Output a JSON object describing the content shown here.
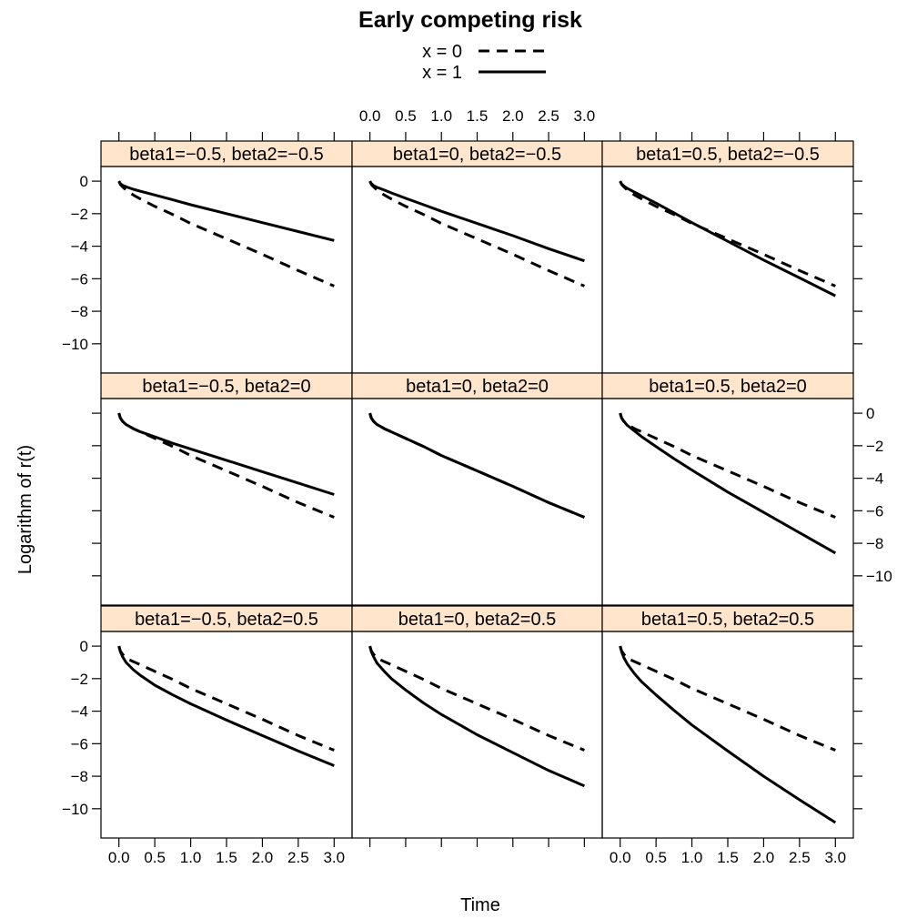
{
  "chart_data": {
    "type": "line",
    "title": "Early competing risk",
    "xlabel": "Time",
    "ylabel": "Logarithm of r(t)",
    "xlim": [
      -0.25,
      3.25
    ],
    "ylim": [
      -11.8,
      0.9
    ],
    "xticks": [
      0.0,
      0.5,
      1.0,
      1.5,
      2.0,
      2.5,
      3.0
    ],
    "xtick_labels": [
      "0.0",
      "0.5",
      "1.0",
      "1.5",
      "2.0",
      "2.5",
      "3.0"
    ],
    "yticks": [
      0,
      -2,
      -4,
      -6,
      -8,
      -10
    ],
    "ytick_labels": [
      "0",
      "−2",
      "−4",
      "−6",
      "−8",
      "−10"
    ],
    "grid": false,
    "legend": {
      "placement": "top-center",
      "entries": [
        {
          "label": "x = 0",
          "style": "dashed"
        },
        {
          "label": "x = 1",
          "style": "solid"
        }
      ]
    },
    "strip_color": "#ffe5cc",
    "x": [
      0.0,
      0.02,
      0.05,
      0.1,
      0.2,
      0.3,
      0.5,
      0.75,
      1.0,
      1.5,
      2.0,
      2.5,
      3.0
    ],
    "panels": [
      {
        "label": "beta1=−0.5, beta2=−0.5",
        "row": 1,
        "col": 1,
        "series": [
          {
            "name": "x = 0",
            "values": [
              0,
              -0.2,
              -0.35,
              -0.55,
              -0.85,
              -1.1,
              -1.55,
              -2.05,
              -2.6,
              -3.55,
              -4.5,
              -5.5,
              -6.45
            ]
          },
          {
            "name": "x = 1",
            "values": [
              0,
              -0.15,
              -0.25,
              -0.35,
              -0.5,
              -0.62,
              -0.85,
              -1.15,
              -1.45,
              -2.0,
              -2.55,
              -3.1,
              -3.65
            ]
          }
        ]
      },
      {
        "label": "beta1=0, beta2=−0.5",
        "row": 1,
        "col": 2,
        "series": [
          {
            "name": "x = 0",
            "values": [
              0,
              -0.2,
              -0.35,
              -0.55,
              -0.85,
              -1.1,
              -1.55,
              -2.05,
              -2.6,
              -3.55,
              -4.5,
              -5.5,
              -6.45
            ]
          },
          {
            "name": "x = 1",
            "values": [
              0,
              -0.15,
              -0.27,
              -0.38,
              -0.55,
              -0.72,
              -1.05,
              -1.45,
              -1.85,
              -2.6,
              -3.35,
              -4.15,
              -4.9
            ]
          }
        ]
      },
      {
        "label": "beta1=0.5, beta2=−0.5",
        "row": 1,
        "col": 3,
        "series": [
          {
            "name": "x = 0",
            "values": [
              0,
              -0.2,
              -0.35,
              -0.55,
              -0.85,
              -1.1,
              -1.55,
              -2.05,
              -2.6,
              -3.55,
              -4.5,
              -5.5,
              -6.45
            ]
          },
          {
            "name": "x = 1",
            "values": [
              0,
              -0.18,
              -0.3,
              -0.45,
              -0.68,
              -0.9,
              -1.35,
              -1.95,
              -2.55,
              -3.7,
              -4.85,
              -5.95,
              -7.05
            ]
          }
        ]
      },
      {
        "label": "beta1=−0.5, beta2=0",
        "row": 2,
        "col": 1,
        "series": [
          {
            "name": "x = 0",
            "values": [
              0,
              -0.3,
              -0.5,
              -0.7,
              -0.95,
              -1.15,
              -1.55,
              -2.05,
              -2.6,
              -3.55,
              -4.5,
              -5.5,
              -6.4
            ]
          },
          {
            "name": "x = 1",
            "values": [
              0,
              -0.3,
              -0.5,
              -0.7,
              -0.95,
              -1.15,
              -1.45,
              -1.85,
              -2.2,
              -2.9,
              -3.6,
              -4.3,
              -5.0
            ]
          }
        ]
      },
      {
        "label": "beta1=0, beta2=0",
        "row": 2,
        "col": 2,
        "series": [
          {
            "name": "x = 0",
            "values": [
              0,
              -0.3,
              -0.5,
              -0.7,
              -0.95,
              -1.15,
              -1.55,
              -2.05,
              -2.6,
              -3.55,
              -4.5,
              -5.5,
              -6.4
            ]
          },
          {
            "name": "x = 1",
            "values": [
              0,
              -0.3,
              -0.5,
              -0.7,
              -0.95,
              -1.15,
              -1.55,
              -2.05,
              -2.6,
              -3.55,
              -4.5,
              -5.5,
              -6.4
            ]
          }
        ]
      },
      {
        "label": "beta1=0.5, beta2=0",
        "row": 2,
        "col": 3,
        "series": [
          {
            "name": "x = 0",
            "values": [
              0,
              -0.3,
              -0.5,
              -0.7,
              -0.95,
              -1.15,
              -1.55,
              -2.05,
              -2.6,
              -3.55,
              -4.5,
              -5.5,
              -6.4
            ]
          },
          {
            "name": "x = 1",
            "values": [
              0,
              -0.3,
              -0.5,
              -0.75,
              -1.1,
              -1.45,
              -2.05,
              -2.8,
              -3.5,
              -4.85,
              -6.1,
              -7.35,
              -8.6
            ]
          }
        ]
      },
      {
        "label": "beta1=−0.5, beta2=0.5",
        "row": 3,
        "col": 1,
        "series": [
          {
            "name": "x = 0",
            "values": [
              0,
              -0.3,
              -0.5,
              -0.75,
              -0.95,
              -1.15,
              -1.55,
              -2.05,
              -2.6,
              -3.55,
              -4.5,
              -5.5,
              -6.4
            ]
          },
          {
            "name": "x = 1",
            "values": [
              0,
              -0.35,
              -0.65,
              -1.0,
              -1.45,
              -1.8,
              -2.4,
              -3.0,
              -3.55,
              -4.55,
              -5.5,
              -6.45,
              -7.35
            ]
          }
        ]
      },
      {
        "label": "beta1=0, beta2=0.5",
        "row": 3,
        "col": 2,
        "series": [
          {
            "name": "x = 0",
            "values": [
              0,
              -0.3,
              -0.5,
              -0.75,
              -0.95,
              -1.15,
              -1.55,
              -2.05,
              -2.6,
              -3.55,
              -4.5,
              -5.5,
              -6.4
            ]
          },
          {
            "name": "x = 1",
            "values": [
              0,
              -0.35,
              -0.65,
              -1.05,
              -1.55,
              -2.0,
              -2.7,
              -3.5,
              -4.2,
              -5.45,
              -6.55,
              -7.65,
              -8.6
            ]
          }
        ]
      },
      {
        "label": "beta1=0.5, beta2=0.5",
        "row": 3,
        "col": 3,
        "series": [
          {
            "name": "x = 0",
            "values": [
              0,
              -0.3,
              -0.5,
              -0.75,
              -0.95,
              -1.15,
              -1.55,
              -2.05,
              -2.6,
              -3.55,
              -4.5,
              -5.5,
              -6.4
            ]
          },
          {
            "name": "x = 1",
            "values": [
              0,
              -0.35,
              -0.7,
              -1.1,
              -1.7,
              -2.2,
              -3.0,
              -3.95,
              -4.85,
              -6.45,
              -8.0,
              -9.45,
              -10.85
            ]
          }
        ]
      }
    ]
  }
}
